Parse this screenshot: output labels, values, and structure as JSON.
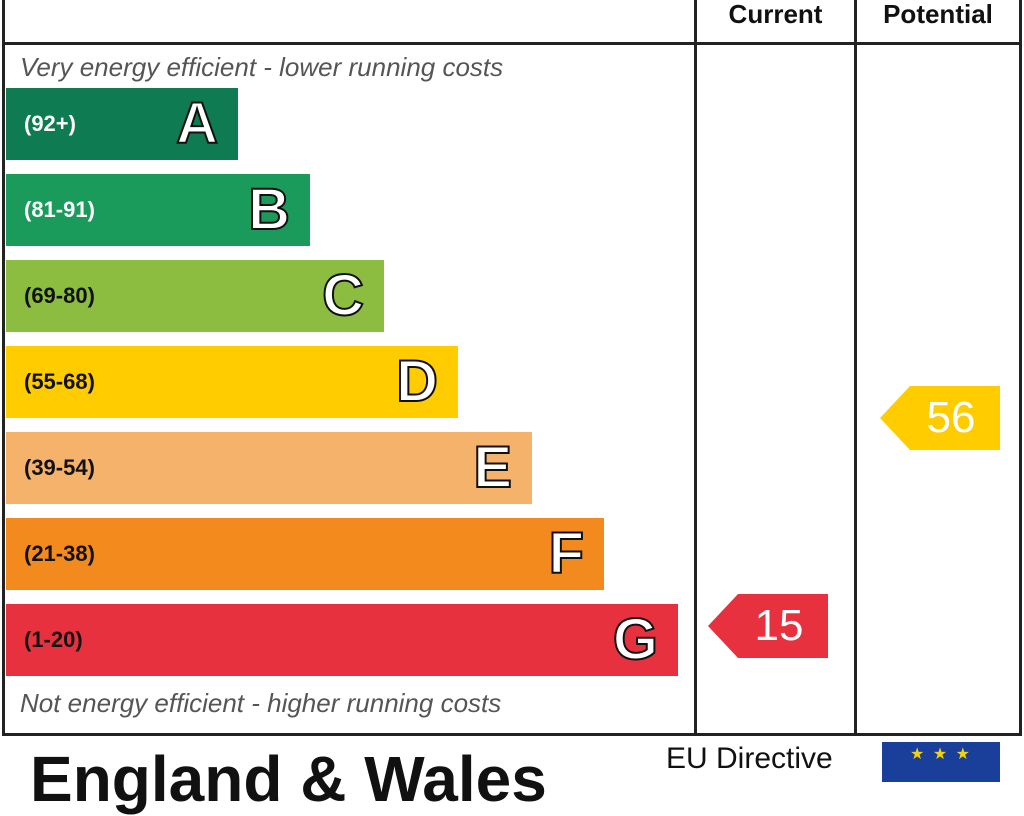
{
  "header": {
    "current": "Current",
    "potential": "Potential"
  },
  "top_note": "Very energy efficient - lower running costs",
  "bottom_note": "Not energy efficient - higher running costs",
  "bands": [
    {
      "range": "(92+)",
      "letter": "A",
      "color": "#0e7b52",
      "range_color": "#ffffff"
    },
    {
      "range": "(81-91)",
      "letter": "B",
      "color": "#1a9a5b",
      "range_color": "#ffffff"
    },
    {
      "range": "(69-80)",
      "letter": "C",
      "color": "#8cbd41",
      "range_color": "#111111"
    },
    {
      "range": "(55-68)",
      "letter": "D",
      "color": "#ffcc00",
      "range_color": "#111111"
    },
    {
      "range": "(39-54)",
      "letter": "E",
      "color": "#f5b26b",
      "range_color": "#111111"
    },
    {
      "range": "(21-38)",
      "letter": "F",
      "color": "#f28a1e",
      "range_color": "#111111"
    },
    {
      "range": "(1-20)",
      "letter": "G",
      "color": "#e8313f",
      "range_color": "#111111"
    }
  ],
  "ratings": {
    "current": {
      "value": "15",
      "band": "G",
      "color": "#e8313f"
    },
    "potential": {
      "value": "56",
      "band": "D",
      "color": "#ffcc00"
    }
  },
  "footer": {
    "title": "England & Wales",
    "eu_directive": "EU Directive",
    "eu_stars": "★ ★ ★"
  }
}
